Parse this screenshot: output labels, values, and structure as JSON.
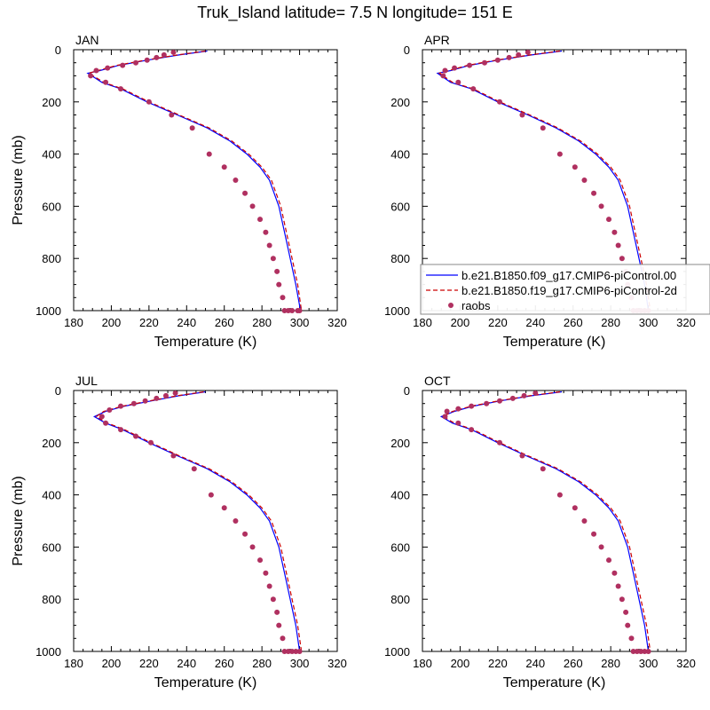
{
  "title": "Truk_Island  latitude= 7.5 N longitude= 151 E",
  "colors": {
    "model_1": "#0000ff",
    "model_2": "#cc0000",
    "raobs": "#b03060",
    "axis": "#000000"
  },
  "legend": {
    "placement": "right of APR panel, near bottom",
    "entries": [
      {
        "label": "b.e21.B1850.f09_g17.CMIP6-piControl.00",
        "style": "solid",
        "color": "#0000ff"
      },
      {
        "label": "b.e21.B1850.f19_g17.CMIP6-piControl-2d",
        "style": "dashed",
        "color": "#cc0000"
      },
      {
        "label": "raobs",
        "style": "marker",
        "color": "#b03060"
      }
    ]
  },
  "chart_data": [
    {
      "type": "line",
      "panel": "JAN",
      "xlabel": "Temperature (K)",
      "ylabel": "Pressure (mb)",
      "xlim": [
        180,
        320
      ],
      "ylim": [
        1000,
        0
      ],
      "xticks": [
        180,
        200,
        220,
        240,
        260,
        280,
        300,
        320
      ],
      "yticks": [
        0,
        200,
        400,
        600,
        800,
        1000
      ],
      "series": [
        {
          "legend_index": 0,
          "style": "solid",
          "x": [
            251,
            236,
            219,
            204,
            194,
            187.5,
            195,
            205,
            219,
            235,
            251,
            263,
            272,
            279,
            284,
            289,
            292,
            295,
            298,
            300.5
          ],
          "y": [
            5,
            20,
            40,
            60,
            80,
            90,
            125,
            150,
            200,
            250,
            300,
            350,
            400,
            450,
            500,
            600,
            700,
            800,
            900,
            1000
          ]
        },
        {
          "legend_index": 1,
          "style": "dashed",
          "x": [
            250,
            235,
            218,
            203,
            193,
            188,
            196,
            206,
            220,
            236,
            252,
            264,
            273,
            280,
            285,
            290,
            293,
            296,
            299,
            301
          ],
          "y": [
            5,
            20,
            40,
            60,
            80,
            90,
            125,
            150,
            200,
            250,
            300,
            350,
            400,
            450,
            500,
            600,
            700,
            800,
            900,
            1000
          ]
        },
        {
          "legend_index": 2,
          "style": "marker",
          "x": [
            233,
            228,
            224,
            219,
            213,
            206,
            198,
            192,
            189,
            197,
            205,
            220,
            232,
            243,
            252,
            260,
            266,
            271,
            275,
            279,
            282,
            284,
            286,
            288,
            289,
            291,
            292,
            294,
            296,
            299,
            300
          ],
          "y": [
            10,
            20,
            30,
            40,
            50,
            60,
            70,
            80,
            100,
            125,
            150,
            200,
            250,
            300,
            400,
            450,
            500,
            550,
            600,
            650,
            700,
            750,
            800,
            850,
            900,
            950,
            1000,
            1000,
            1000,
            1000,
            1000
          ]
        }
      ]
    },
    {
      "type": "line",
      "panel": "APR",
      "xlabel": "Temperature (K)",
      "ylabel": "",
      "xlim": [
        180,
        320
      ],
      "ylim": [
        1000,
        0
      ],
      "xticks": [
        180,
        200,
        220,
        240,
        260,
        280,
        300,
        320
      ],
      "yticks": [
        0,
        200,
        400,
        600,
        800,
        1000
      ],
      "series": [
        {
          "legend_index": 0,
          "style": "solid",
          "x": [
            254,
            238,
            220,
            205,
            195,
            188,
            195,
            206,
            220,
            236,
            251,
            263,
            272,
            279,
            284,
            289,
            292,
            295,
            298,
            300
          ],
          "y": [
            5,
            20,
            40,
            60,
            80,
            90,
            125,
            150,
            200,
            250,
            300,
            350,
            400,
            450,
            500,
            600,
            700,
            800,
            900,
            1000
          ]
        },
        {
          "legend_index": 1,
          "style": "dashed",
          "x": [
            253,
            237,
            219,
            204,
            194,
            189,
            196,
            207,
            221,
            237,
            252,
            264,
            273,
            280,
            285,
            290,
            293,
            296,
            299,
            301
          ],
          "y": [
            5,
            20,
            40,
            60,
            80,
            90,
            125,
            150,
            200,
            250,
            300,
            350,
            400,
            450,
            500,
            600,
            700,
            800,
            900,
            1000
          ]
        },
        {
          "legend_index": 2,
          "style": "marker",
          "x": [
            236,
            231,
            226,
            220,
            213,
            205,
            197,
            192,
            191,
            199,
            207,
            221,
            233,
            244,
            253,
            261,
            266,
            271,
            275,
            279,
            282,
            284,
            286,
            288,
            289,
            291,
            292,
            294,
            296,
            298,
            300
          ],
          "y": [
            10,
            20,
            30,
            40,
            50,
            60,
            70,
            80,
            100,
            125,
            150,
            200,
            250,
            300,
            400,
            450,
            500,
            550,
            600,
            650,
            700,
            750,
            800,
            850,
            900,
            950,
            1000,
            1000,
            1000,
            1000,
            1000
          ]
        }
      ]
    },
    {
      "type": "line",
      "panel": "JUL",
      "xlabel": "Temperature (K)",
      "ylabel": "Pressure (mb)",
      "xlim": [
        180,
        320
      ],
      "ylim": [
        1000,
        0
      ],
      "xticks": [
        180,
        200,
        220,
        240,
        260,
        280,
        300,
        320
      ],
      "yticks": [
        0,
        200,
        400,
        600,
        800,
        1000
      ],
      "series": [
        {
          "legend_index": 0,
          "style": "solid",
          "x": [
            250,
            236,
            221,
            207,
            197,
            191,
            197,
            206,
            220,
            235,
            251,
            263,
            272,
            279,
            284,
            289,
            292,
            295,
            298,
            300
          ],
          "y": [
            5,
            20,
            40,
            60,
            80,
            100,
            125,
            150,
            200,
            250,
            300,
            350,
            400,
            450,
            500,
            600,
            700,
            800,
            900,
            1000
          ]
        },
        {
          "legend_index": 1,
          "style": "dashed",
          "x": [
            249,
            235,
            220,
            206,
            196,
            192,
            198,
            207,
            221,
            236,
            252,
            264,
            273,
            280,
            285,
            290,
            293,
            296,
            299,
            301
          ],
          "y": [
            5,
            20,
            40,
            60,
            80,
            100,
            125,
            150,
            200,
            250,
            300,
            350,
            400,
            450,
            500,
            600,
            700,
            800,
            900,
            1000
          ]
        },
        {
          "legend_index": 2,
          "style": "marker",
          "x": [
            234,
            229,
            224,
            218,
            212,
            205,
            199,
            195,
            197,
            205,
            213,
            221,
            233,
            244,
            253,
            260,
            266,
            271,
            275,
            279,
            282,
            284,
            286,
            288,
            289,
            291,
            292,
            294,
            296,
            298,
            300
          ],
          "y": [
            10,
            20,
            30,
            40,
            50,
            60,
            75,
            100,
            125,
            150,
            175,
            200,
            250,
            300,
            400,
            450,
            500,
            550,
            600,
            650,
            700,
            750,
            800,
            850,
            900,
            950,
            1000,
            1000,
            1000,
            1000,
            1000
          ]
        }
      ]
    },
    {
      "type": "line",
      "panel": "OCT",
      "xlabel": "Temperature (K)",
      "ylabel": "",
      "xlim": [
        180,
        320
      ],
      "ylim": [
        1000,
        0
      ],
      "xticks": [
        180,
        200,
        220,
        240,
        260,
        280,
        300,
        320
      ],
      "yticks": [
        0,
        200,
        400,
        600,
        800,
        1000
      ],
      "series": [
        {
          "legend_index": 0,
          "style": "solid",
          "x": [
            254,
            238,
            221,
            207,
            197,
            190,
            196,
            206,
            220,
            235,
            251,
            263,
            272,
            279,
            284,
            289,
            292,
            295,
            298,
            300
          ],
          "y": [
            5,
            20,
            40,
            60,
            80,
            100,
            125,
            150,
            200,
            250,
            300,
            350,
            400,
            450,
            500,
            600,
            700,
            800,
            900,
            1000
          ]
        },
        {
          "legend_index": 1,
          "style": "dashed",
          "x": [
            253,
            237,
            220,
            206,
            196,
            191,
            197,
            207,
            221,
            236,
            252,
            264,
            273,
            280,
            285,
            290,
            293,
            296,
            299,
            301
          ],
          "y": [
            5,
            20,
            40,
            60,
            80,
            100,
            125,
            150,
            200,
            250,
            300,
            350,
            400,
            450,
            500,
            600,
            700,
            800,
            900,
            1000
          ]
        },
        {
          "legend_index": 2,
          "style": "marker",
          "x": [
            240,
            234,
            228,
            221,
            214,
            206,
            199,
            193,
            192,
            199,
            206,
            221,
            233,
            244,
            253,
            261,
            266,
            271,
            275,
            279,
            282,
            284,
            286,
            288,
            289,
            291,
            292,
            294,
            296,
            298,
            300
          ],
          "y": [
            10,
            20,
            30,
            40,
            50,
            60,
            70,
            80,
            100,
            125,
            150,
            200,
            250,
            300,
            400,
            450,
            500,
            550,
            600,
            650,
            700,
            750,
            800,
            850,
            900,
            950,
            1000,
            1000,
            1000,
            1000,
            1000
          ]
        }
      ]
    }
  ]
}
